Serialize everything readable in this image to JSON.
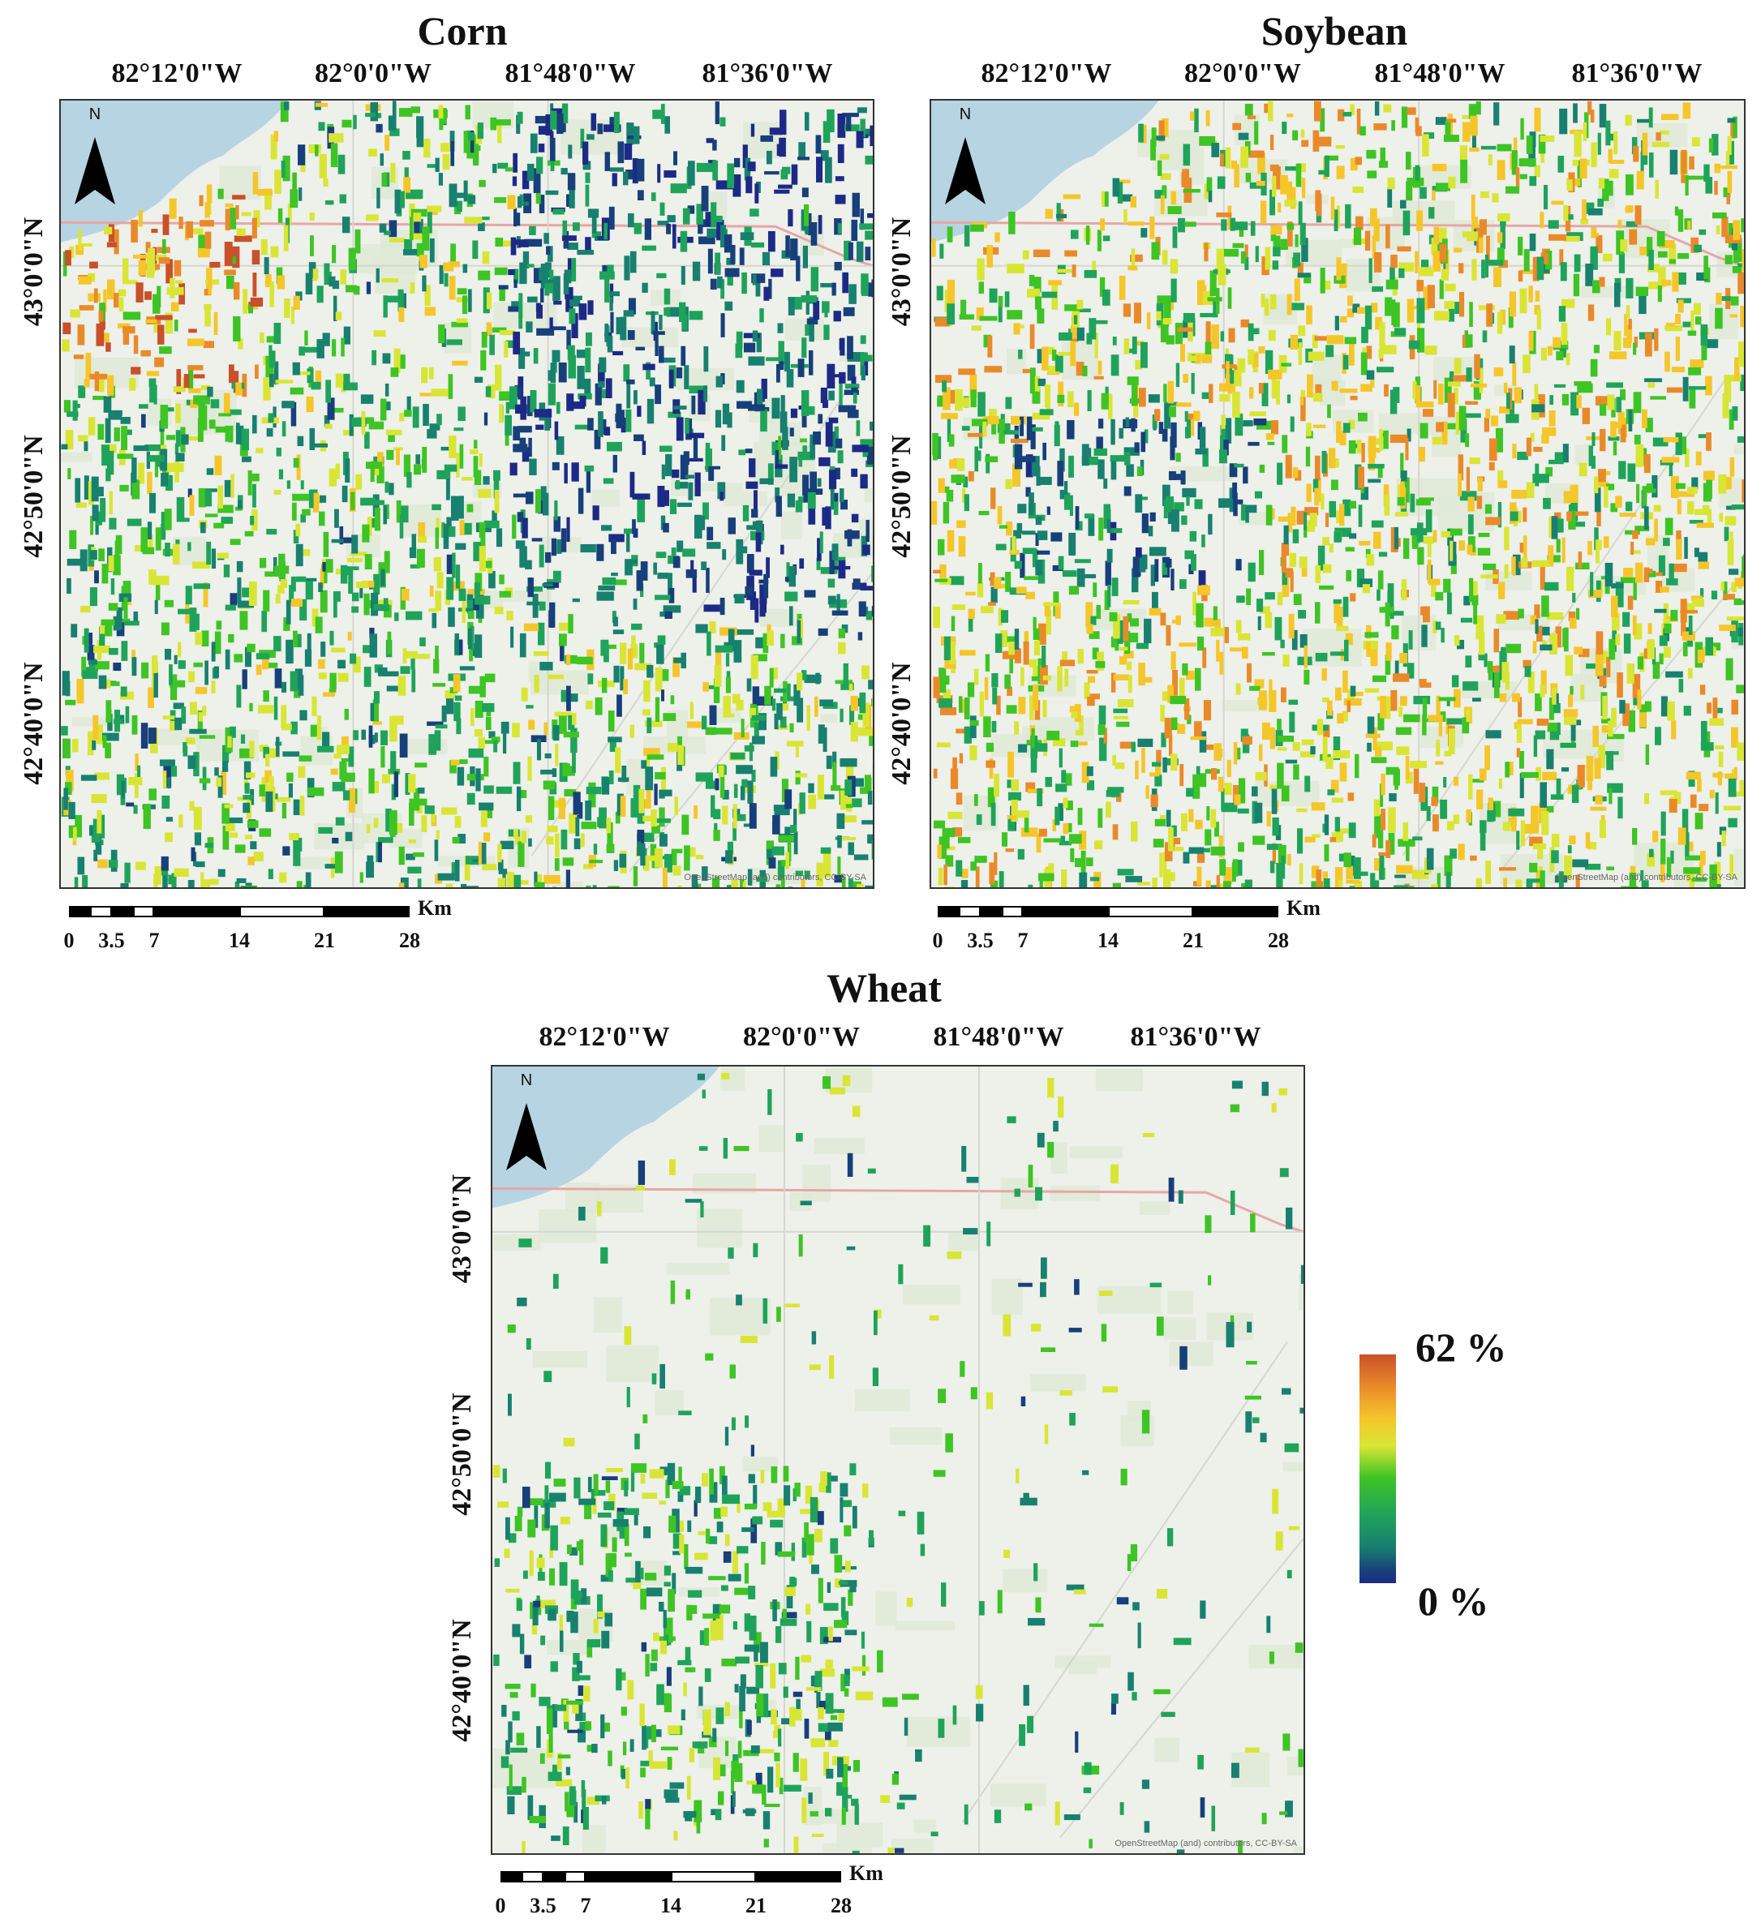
{
  "panels": {
    "corn": {
      "title": "Corn",
      "lon_labels": [
        "82°12'0\"W",
        "82°0'0\"W",
        "81°48'0\"W",
        "81°36'0\"W"
      ],
      "lat_labels": [
        "43°0'0\"N",
        "42°50'0\"N",
        "42°40'0\"N"
      ],
      "north_letter": "N",
      "attribution": "OpenStreetMap (and) contributors, CC-BY-SA"
    },
    "soybean": {
      "title": "Soybean",
      "lon_labels": [
        "82°12'0\"W",
        "82°0'0\"W",
        "81°48'0\"W",
        "81°36'0\"W"
      ],
      "lat_labels": [
        "43°0'0\"N",
        "42°50'0\"N",
        "42°40'0\"N"
      ],
      "north_letter": "N",
      "attribution": "OpenStreetMap (and) contributors, CC-BY-SA"
    },
    "wheat": {
      "title": "Wheat",
      "lon_labels": [
        "82°12'0\"W",
        "82°0'0\"W",
        "81°48'0\"W",
        "81°36'0\"W"
      ],
      "lat_labels": [
        "43°0'0\"N",
        "42°50'0\"N",
        "42°40'0\"N"
      ],
      "north_letter": "N",
      "attribution": "OpenStreetMap (and) contributors, CC-BY-SA"
    }
  },
  "scale_bar": {
    "unit": "Km",
    "ticks": [
      "0",
      "3.5",
      "7",
      "14",
      "21",
      "28"
    ]
  },
  "legend": {
    "max_label": "62 %",
    "min_label": "0 %",
    "colors": [
      "#c8502a",
      "#e98a2a",
      "#f5c62a",
      "#d9e534",
      "#3ec424",
      "#1fa35a",
      "#18806f",
      "#173f7a",
      "#1c2a86"
    ]
  }
}
